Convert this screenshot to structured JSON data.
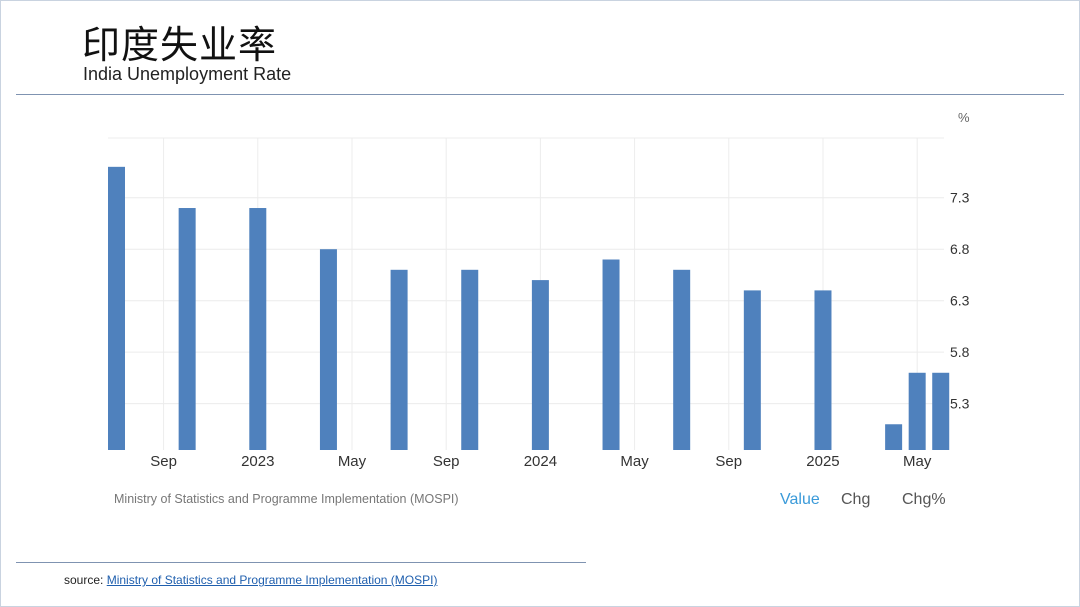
{
  "header": {
    "title_cn": "印度失业率",
    "title_en": "India Unemployment Rate"
  },
  "chart_data": {
    "type": "bar",
    "unit": "%",
    "categories": [
      "2022-07",
      "2022-08",
      "2022-09",
      "2022-10",
      "2022-11",
      "2022-12",
      "2023-01",
      "2023-02",
      "2023-03",
      "2023-04",
      "2023-05",
      "2023-06",
      "2023-07",
      "2023-08",
      "2023-09",
      "2023-10",
      "2023-11",
      "2023-12",
      "2024-01",
      "2024-02",
      "2024-03",
      "2024-04",
      "2024-05",
      "2024-06",
      "2024-07",
      "2024-08",
      "2024-09",
      "2024-10",
      "2024-11",
      "2024-12",
      "2025-01",
      "2025-02",
      "2025-03",
      "2025-04",
      "2025-05",
      "2025-06"
    ],
    "series": [
      {
        "values": [
          7.6,
          null,
          null,
          7.2,
          null,
          null,
          7.2,
          null,
          null,
          6.8,
          null,
          null,
          6.6,
          null,
          null,
          6.6,
          null,
          null,
          6.5,
          null,
          null,
          6.7,
          null,
          null,
          6.6,
          null,
          null,
          6.4,
          null,
          null,
          6.4,
          null,
          null,
          5.1,
          5.6,
          5.6
        ]
      }
    ],
    "x_tick_labels": [
      {
        "category": "2022-09",
        "label": "Sep"
      },
      {
        "category": "2023-01",
        "label": "2023"
      },
      {
        "category": "2023-05",
        "label": "May"
      },
      {
        "category": "2023-09",
        "label": "Sep"
      },
      {
        "category": "2024-01",
        "label": "2024"
      },
      {
        "category": "2024-05",
        "label": "May"
      },
      {
        "category": "2024-09",
        "label": "Sep"
      },
      {
        "category": "2025-01",
        "label": "2025"
      },
      {
        "category": "2025-05",
        "label": "May"
      }
    ],
    "y_ticks": [
      5.3,
      5.8,
      6.3,
      6.8,
      7.3
    ],
    "ylim": [
      4.85,
      7.88
    ],
    "y_axis_position": "right",
    "grid": true,
    "bar_color": "#4f81bd",
    "source_label": "Ministry of Statistics and Programme Implementation (MOSPI)",
    "legend_items": [
      "Value",
      "Chg",
      "Chg%"
    ],
    "legend_active": "Value",
    "legend_active_color": "#3a9ad9"
  },
  "footer": {
    "source_prefix": "source:",
    "source_link": "Ministry of Statistics and Programme Implementation (MOSPI)"
  }
}
